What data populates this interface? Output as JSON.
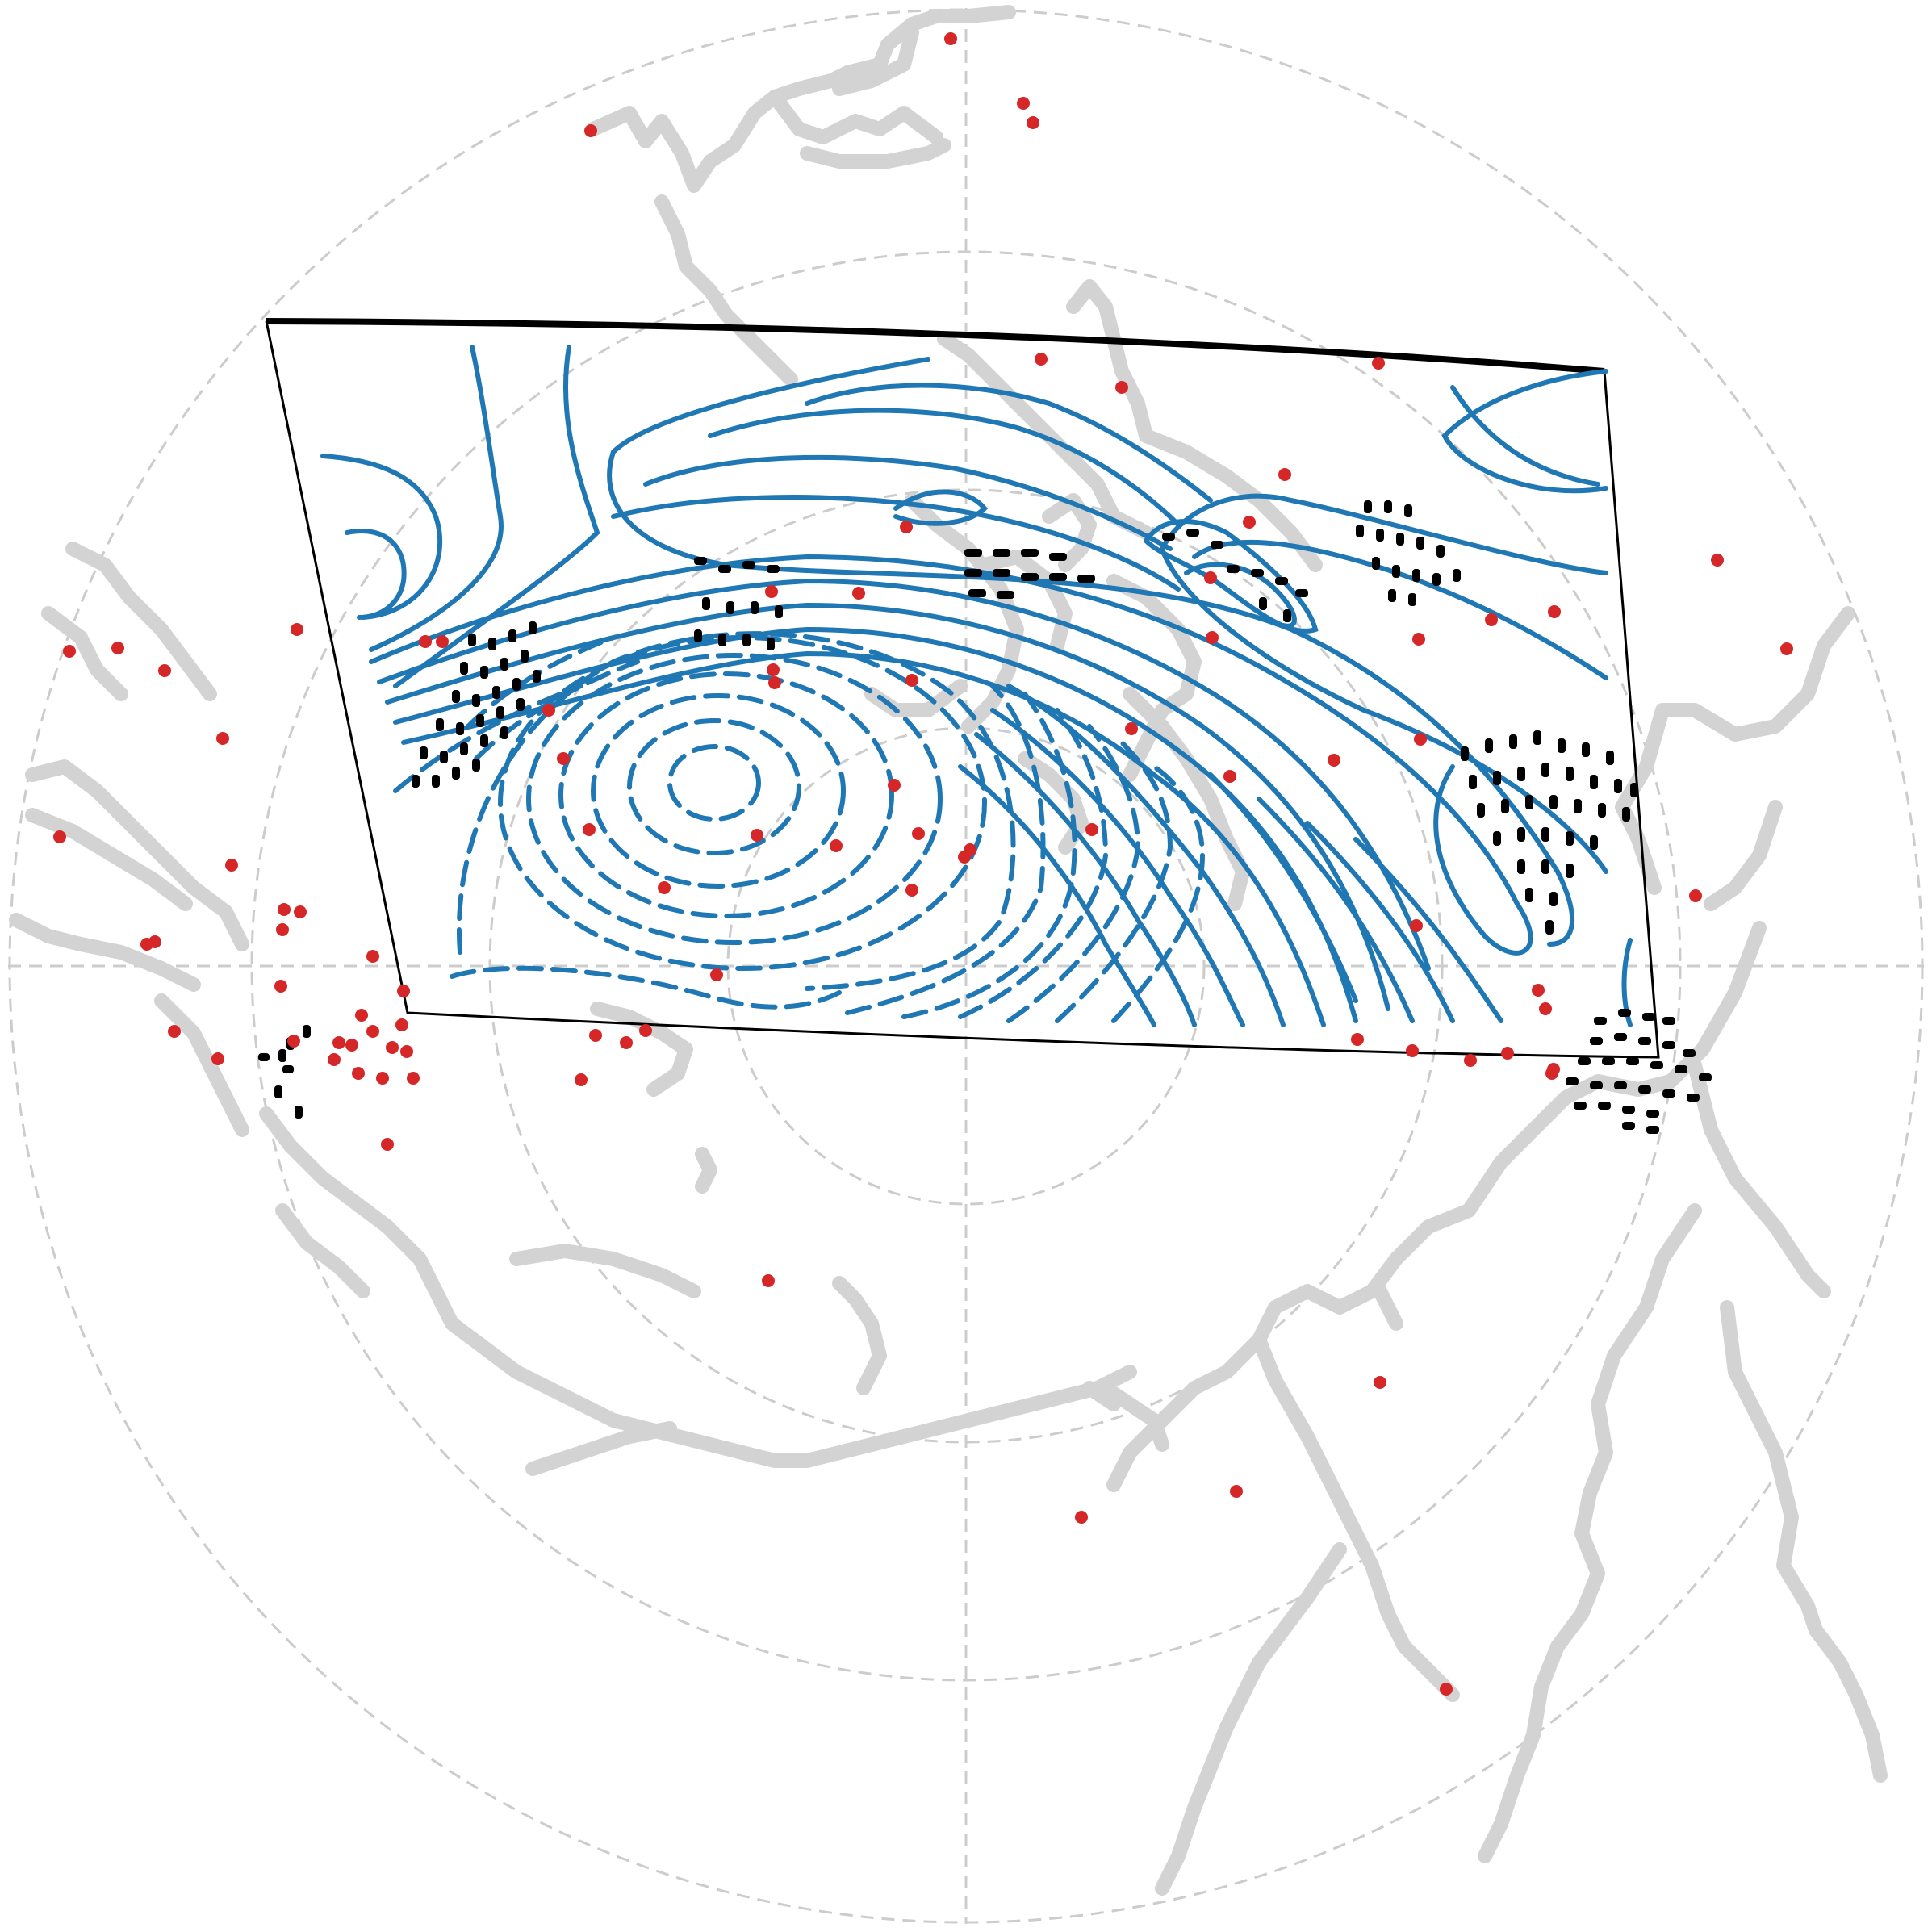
{
  "map": {
    "projection": "polar-stereographic",
    "colors": {
      "background": "#ffffff",
      "graticule": "#cccccc",
      "coastline": "#d3d3d3",
      "contour": "#1f77b4",
      "stations": "#d62728",
      "stipple": "#000000",
      "domain_border": "#000000"
    },
    "graticule": {
      "style": "dashed",
      "latitude_circles": 4,
      "meridians": 4
    },
    "contours": {
      "positive_style": "solid",
      "negative_style": "dashed",
      "features": [
        "ridge",
        "trough",
        "secondary-high"
      ]
    },
    "stations": {
      "count_visible": 120,
      "symbol": "dot"
    },
    "significance": {
      "symbol": "stipple"
    }
  }
}
